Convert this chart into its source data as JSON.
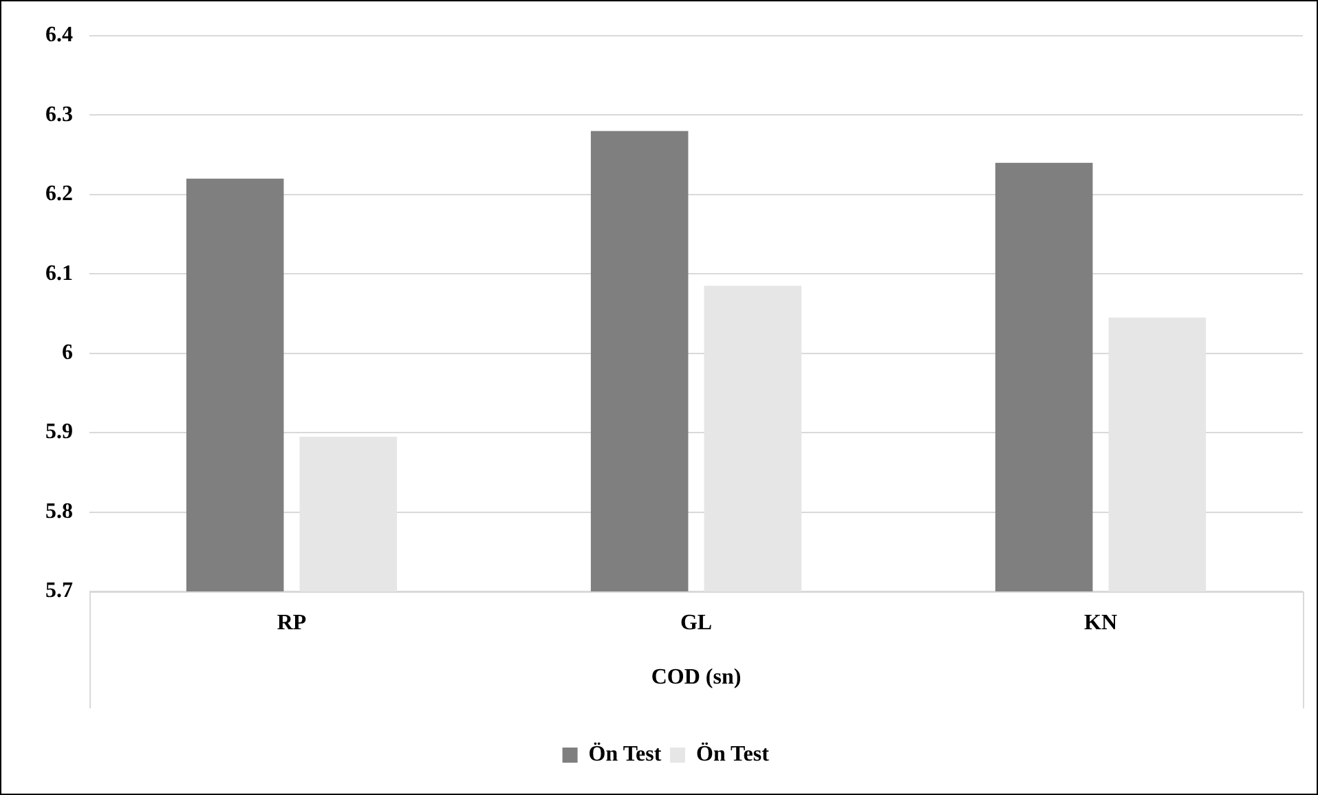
{
  "chart_data": {
    "type": "bar",
    "xlabel": "COD (sn)",
    "categories": [
      "RP",
      "GL",
      "KN"
    ],
    "series": [
      {
        "name": "Ön Test",
        "color": "#7f7f7f",
        "values": [
          6.22,
          6.28,
          6.24
        ]
      },
      {
        "name": "Ön Test",
        "color": "#e6e6e6",
        "values": [
          5.895,
          6.085,
          6.045
        ]
      }
    ],
    "ylim": [
      5.7,
      6.4
    ],
    "yticks": [
      5.7,
      5.8,
      5.9,
      6,
      6.1,
      6.2,
      6.3,
      6.4
    ],
    "grid": "y",
    "legend": "bottom"
  }
}
